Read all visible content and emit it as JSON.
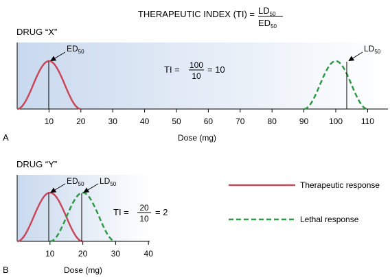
{
  "formula": {
    "lhs": "THERAPEUTIC INDEX (TI) =",
    "numerator": "LD",
    "denominator": "ED",
    "subscript": "50"
  },
  "panel_a": {
    "letter": "A",
    "drug_label": "DRUG “X”",
    "ed_label": "ED",
    "ld_label": "LD",
    "subscript": "50",
    "ti_prefix": "TI =",
    "ti_num": "100",
    "ti_den": "10",
    "ti_result": "= 10",
    "x_label": "Dose (mg)",
    "ticks": [
      "10",
      "20",
      "30",
      "40",
      "50",
      "60",
      "70",
      "80",
      "90",
      "100",
      "110"
    ]
  },
  "panel_b": {
    "letter": "B",
    "drug_label": "DRUG “Y”",
    "ed_label": "ED",
    "ld_label": "LD",
    "subscript": "50",
    "ti_prefix": "TI =",
    "ti_num": "20",
    "ti_den": "10",
    "ti_result": "= 2",
    "x_label": "Dose (mg)",
    "ticks": [
      "10",
      "20",
      "30",
      "40"
    ]
  },
  "legend": {
    "therapeutic": "Therapeutic response",
    "lethal": "Lethal response"
  },
  "colors": {
    "therapeutic": "#c8485a",
    "lethal": "#2e9a45",
    "panel_fill_left": "#c9d9ee",
    "panel_fill_right": "#ffffff"
  },
  "curves": {
    "drug_x": {
      "therapeutic": {
        "from": 0,
        "to": 20,
        "peak": 10
      },
      "lethal": {
        "from": 90,
        "to": 110,
        "peak": 100
      }
    },
    "drug_y": {
      "therapeutic": {
        "from": 0,
        "to": 20,
        "peak": 10
      },
      "lethal": {
        "from": 10,
        "to": 30,
        "peak": 20
      }
    }
  }
}
